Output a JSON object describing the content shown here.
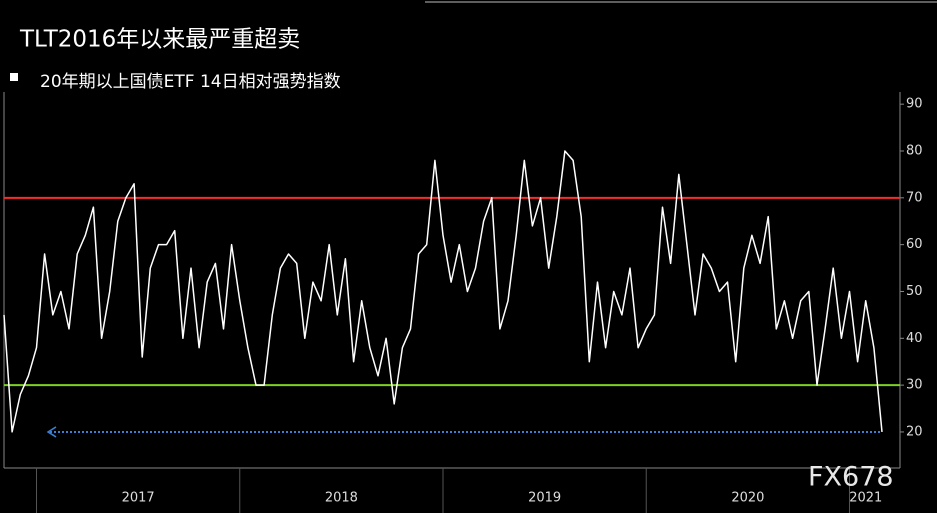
{
  "chart_data": {
    "type": "line",
    "title": "TLT2016年以来最严重超卖",
    "watermark": "FX678",
    "series": [
      {
        "name": "20年期以上国债ETF 14日相对强势指数",
        "color": "#ffffff",
        "x": [
          2016.84,
          2016.88,
          2016.92,
          2016.96,
          2017,
          2017.04,
          2017.08,
          2017.12,
          2017.16,
          2017.2,
          2017.24,
          2017.28,
          2017.32,
          2017.36,
          2017.4,
          2017.44,
          2017.48,
          2017.52,
          2017.56,
          2017.6,
          2017.64,
          2017.68,
          2017.72,
          2017.76,
          2017.8,
          2017.84,
          2017.88,
          2017.92,
          2017.96,
          2018,
          2018.04,
          2018.08,
          2018.12,
          2018.16,
          2018.2,
          2018.24,
          2018.28,
          2018.32,
          2018.36,
          2018.4,
          2018.44,
          2018.48,
          2018.52,
          2018.56,
          2018.6,
          2018.64,
          2018.68,
          2018.72,
          2018.76,
          2018.8,
          2018.84,
          2018.88,
          2018.92,
          2018.96,
          2019,
          2019.04,
          2019.08,
          2019.12,
          2019.16,
          2019.2,
          2019.24,
          2019.28,
          2019.32,
          2019.36,
          2019.4,
          2019.44,
          2019.48,
          2019.52,
          2019.56,
          2019.6,
          2019.64,
          2019.68,
          2019.72,
          2019.76,
          2019.8,
          2019.84,
          2019.88,
          2019.92,
          2019.96,
          2020,
          2020.04,
          2020.08,
          2020.12,
          2020.16,
          2020.2,
          2020.24,
          2020.28,
          2020.32,
          2020.36,
          2020.4,
          2020.44,
          2020.48,
          2020.52,
          2020.56,
          2020.6,
          2020.64,
          2020.68,
          2020.72,
          2020.76,
          2020.8,
          2020.84,
          2020.88,
          2020.92,
          2020.96,
          2021,
          2021.04,
          2021.08,
          2021.12,
          2021.16
        ],
        "values": [
          45,
          20,
          28,
          32,
          38,
          58,
          45,
          50,
          42,
          58,
          62,
          68,
          40,
          50,
          65,
          70,
          73,
          36,
          55,
          60,
          60,
          63,
          40,
          55,
          38,
          52,
          56,
          42,
          60,
          48,
          38,
          30,
          30,
          45,
          55,
          58,
          56,
          40,
          52,
          48,
          60,
          45,
          57,
          35,
          48,
          38,
          32,
          40,
          26,
          38,
          42,
          58,
          60,
          78,
          62,
          52,
          60,
          50,
          55,
          65,
          70,
          42,
          48,
          62,
          78,
          64,
          70,
          55,
          66,
          80,
          78,
          66,
          35,
          52,
          38,
          50,
          45,
          55,
          38,
          42,
          45,
          68,
          56,
          75,
          60,
          45,
          58,
          55,
          50,
          52,
          35,
          55,
          62,
          56,
          66,
          42,
          48,
          40,
          48,
          50,
          30,
          42,
          55,
          40,
          50,
          35,
          48,
          38,
          20
        ]
      }
    ],
    "reference_lines": [
      {
        "value": 70,
        "color": "#ff2a2a"
      },
      {
        "value": 30,
        "color": "#7ed321"
      },
      {
        "value": 20,
        "color": "#3a7fd5"
      }
    ],
    "xlim": [
      2016.84,
      2021.16
    ],
    "xticks": [
      2017,
      2018,
      2019,
      2020,
      2021
    ],
    "ylim": [
      12.3,
      92.6
    ],
    "yticks": [
      20,
      30,
      40,
      50,
      60,
      70,
      80,
      90
    ]
  }
}
